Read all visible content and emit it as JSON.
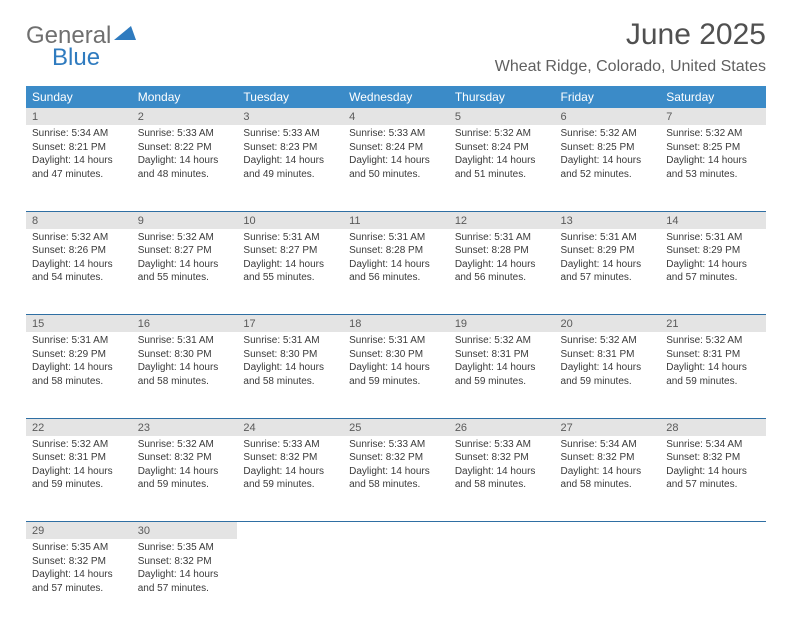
{
  "brand": {
    "line1": "General",
    "line2": "Blue"
  },
  "title": "June 2025",
  "location": "Wheat Ridge, Colorado, United States",
  "colors": {
    "header_bg": "#3b8bc8",
    "header_fg": "#ffffff",
    "daynum_bg": "#e4e4e4",
    "rule": "#2f6fa3",
    "brand_gray": "#6f6f6f",
    "brand_blue": "#2f7bbf"
  },
  "weekdays": [
    "Sunday",
    "Monday",
    "Tuesday",
    "Wednesday",
    "Thursday",
    "Friday",
    "Saturday"
  ],
  "weeks": [
    [
      {
        "day": "1",
        "sunrise": "Sunrise: 5:34 AM",
        "sunset": "Sunset: 8:21 PM",
        "daylight": "Daylight: 14 hours and 47 minutes."
      },
      {
        "day": "2",
        "sunrise": "Sunrise: 5:33 AM",
        "sunset": "Sunset: 8:22 PM",
        "daylight": "Daylight: 14 hours and 48 minutes."
      },
      {
        "day": "3",
        "sunrise": "Sunrise: 5:33 AM",
        "sunset": "Sunset: 8:23 PM",
        "daylight": "Daylight: 14 hours and 49 minutes."
      },
      {
        "day": "4",
        "sunrise": "Sunrise: 5:33 AM",
        "sunset": "Sunset: 8:24 PM",
        "daylight": "Daylight: 14 hours and 50 minutes."
      },
      {
        "day": "5",
        "sunrise": "Sunrise: 5:32 AM",
        "sunset": "Sunset: 8:24 PM",
        "daylight": "Daylight: 14 hours and 51 minutes."
      },
      {
        "day": "6",
        "sunrise": "Sunrise: 5:32 AM",
        "sunset": "Sunset: 8:25 PM",
        "daylight": "Daylight: 14 hours and 52 minutes."
      },
      {
        "day": "7",
        "sunrise": "Sunrise: 5:32 AM",
        "sunset": "Sunset: 8:25 PM",
        "daylight": "Daylight: 14 hours and 53 minutes."
      }
    ],
    [
      {
        "day": "8",
        "sunrise": "Sunrise: 5:32 AM",
        "sunset": "Sunset: 8:26 PM",
        "daylight": "Daylight: 14 hours and 54 minutes."
      },
      {
        "day": "9",
        "sunrise": "Sunrise: 5:32 AM",
        "sunset": "Sunset: 8:27 PM",
        "daylight": "Daylight: 14 hours and 55 minutes."
      },
      {
        "day": "10",
        "sunrise": "Sunrise: 5:31 AM",
        "sunset": "Sunset: 8:27 PM",
        "daylight": "Daylight: 14 hours and 55 minutes."
      },
      {
        "day": "11",
        "sunrise": "Sunrise: 5:31 AM",
        "sunset": "Sunset: 8:28 PM",
        "daylight": "Daylight: 14 hours and 56 minutes."
      },
      {
        "day": "12",
        "sunrise": "Sunrise: 5:31 AM",
        "sunset": "Sunset: 8:28 PM",
        "daylight": "Daylight: 14 hours and 56 minutes."
      },
      {
        "day": "13",
        "sunrise": "Sunrise: 5:31 AM",
        "sunset": "Sunset: 8:29 PM",
        "daylight": "Daylight: 14 hours and 57 minutes."
      },
      {
        "day": "14",
        "sunrise": "Sunrise: 5:31 AM",
        "sunset": "Sunset: 8:29 PM",
        "daylight": "Daylight: 14 hours and 57 minutes."
      }
    ],
    [
      {
        "day": "15",
        "sunrise": "Sunrise: 5:31 AM",
        "sunset": "Sunset: 8:29 PM",
        "daylight": "Daylight: 14 hours and 58 minutes."
      },
      {
        "day": "16",
        "sunrise": "Sunrise: 5:31 AM",
        "sunset": "Sunset: 8:30 PM",
        "daylight": "Daylight: 14 hours and 58 minutes."
      },
      {
        "day": "17",
        "sunrise": "Sunrise: 5:31 AM",
        "sunset": "Sunset: 8:30 PM",
        "daylight": "Daylight: 14 hours and 58 minutes."
      },
      {
        "day": "18",
        "sunrise": "Sunrise: 5:31 AM",
        "sunset": "Sunset: 8:30 PM",
        "daylight": "Daylight: 14 hours and 59 minutes."
      },
      {
        "day": "19",
        "sunrise": "Sunrise: 5:32 AM",
        "sunset": "Sunset: 8:31 PM",
        "daylight": "Daylight: 14 hours and 59 minutes."
      },
      {
        "day": "20",
        "sunrise": "Sunrise: 5:32 AM",
        "sunset": "Sunset: 8:31 PM",
        "daylight": "Daylight: 14 hours and 59 minutes."
      },
      {
        "day": "21",
        "sunrise": "Sunrise: 5:32 AM",
        "sunset": "Sunset: 8:31 PM",
        "daylight": "Daylight: 14 hours and 59 minutes."
      }
    ],
    [
      {
        "day": "22",
        "sunrise": "Sunrise: 5:32 AM",
        "sunset": "Sunset: 8:31 PM",
        "daylight": "Daylight: 14 hours and 59 minutes."
      },
      {
        "day": "23",
        "sunrise": "Sunrise: 5:32 AM",
        "sunset": "Sunset: 8:32 PM",
        "daylight": "Daylight: 14 hours and 59 minutes."
      },
      {
        "day": "24",
        "sunrise": "Sunrise: 5:33 AM",
        "sunset": "Sunset: 8:32 PM",
        "daylight": "Daylight: 14 hours and 59 minutes."
      },
      {
        "day": "25",
        "sunrise": "Sunrise: 5:33 AM",
        "sunset": "Sunset: 8:32 PM",
        "daylight": "Daylight: 14 hours and 58 minutes."
      },
      {
        "day": "26",
        "sunrise": "Sunrise: 5:33 AM",
        "sunset": "Sunset: 8:32 PM",
        "daylight": "Daylight: 14 hours and 58 minutes."
      },
      {
        "day": "27",
        "sunrise": "Sunrise: 5:34 AM",
        "sunset": "Sunset: 8:32 PM",
        "daylight": "Daylight: 14 hours and 58 minutes."
      },
      {
        "day": "28",
        "sunrise": "Sunrise: 5:34 AM",
        "sunset": "Sunset: 8:32 PM",
        "daylight": "Daylight: 14 hours and 57 minutes."
      }
    ],
    [
      {
        "day": "29",
        "sunrise": "Sunrise: 5:35 AM",
        "sunset": "Sunset: 8:32 PM",
        "daylight": "Daylight: 14 hours and 57 minutes."
      },
      {
        "day": "30",
        "sunrise": "Sunrise: 5:35 AM",
        "sunset": "Sunset: 8:32 PM",
        "daylight": "Daylight: 14 hours and 57 minutes."
      },
      null,
      null,
      null,
      null,
      null
    ]
  ]
}
